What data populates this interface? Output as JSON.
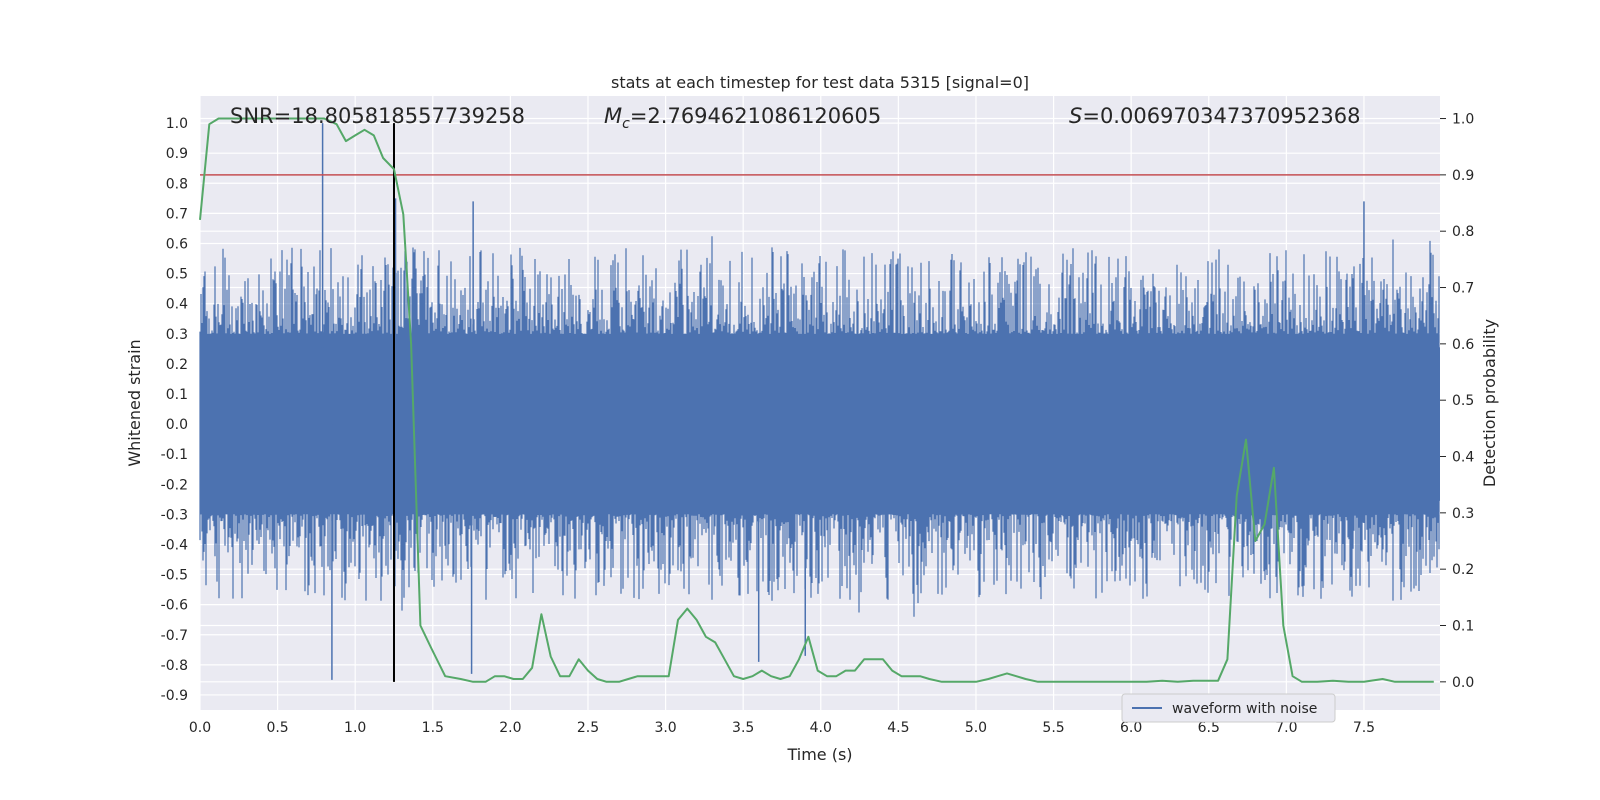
{
  "chart_data": {
    "type": "line",
    "title": "stats at each timestep for test data 5315 [signal=0]",
    "xlabel": "Time (s)",
    "ylabel": "Whitened strain",
    "y2label": "Detection probability",
    "xlim": [
      0,
      7.99
    ],
    "ylim": [
      -0.95,
      1.09
    ],
    "y2lim": [
      -0.05,
      1.04
    ],
    "xticks": [
      "0.0",
      "0.5",
      "1.0",
      "1.5",
      "2.0",
      "2.5",
      "3.0",
      "3.5",
      "4.0",
      "4.5",
      "5.0",
      "5.5",
      "6.0",
      "6.5",
      "7.0",
      "7.5"
    ],
    "yticks": [
      "1.0",
      "0.9",
      "0.8",
      "0.7",
      "0.6",
      "0.5",
      "0.4",
      "0.3",
      "0.2",
      "0.1",
      "0.0",
      "-0.1",
      "-0.2",
      "-0.3",
      "-0.4",
      "-0.5",
      "-0.6",
      "-0.7",
      "-0.8",
      "-0.9"
    ],
    "y2ticks": [
      "1.0",
      "0.9",
      "0.8",
      "0.7",
      "0.6",
      "0.5",
      "0.4",
      "0.3",
      "0.2",
      "0.1",
      "0.0"
    ],
    "grid": true,
    "legend": {
      "position": "lower-right",
      "entries": [
        "waveform with noise"
      ]
    },
    "annotations": {
      "snr": "SNR=18.805818557739258",
      "mc_symbol": "M",
      "mc_sub": "c",
      "mc_value": "=2.7694621086120605",
      "s_symbol": "S",
      "s_value": "=0.006970347370952368"
    },
    "threshold": {
      "value": 0.9,
      "axis": "y2",
      "color": "#c44e52"
    },
    "vline": {
      "x": 1.25,
      "color": "#000000"
    },
    "waveform": {
      "name": "waveform with noise",
      "color": "#4c72b0",
      "core_amplitude": 0.3,
      "typical_peak": 0.55,
      "spikes": [
        [
          0.79,
          1.0
        ],
        [
          0.85,
          -0.85
        ],
        [
          1.26,
          0.75
        ],
        [
          1.76,
          0.74
        ],
        [
          1.75,
          -0.83
        ],
        [
          7.5,
          0.74
        ],
        [
          3.6,
          -0.79
        ],
        [
          3.9,
          -0.77
        ]
      ]
    },
    "probability": {
      "color": "#55a868",
      "x": [
        0.0,
        0.06,
        0.12,
        0.2,
        0.3,
        0.4,
        0.5,
        0.6,
        0.7,
        0.8,
        0.88,
        0.94,
        1.0,
        1.06,
        1.12,
        1.18,
        1.25,
        1.31,
        1.36,
        1.42,
        1.49,
        1.58,
        1.68,
        1.76,
        1.84,
        1.9,
        1.96,
        2.02,
        2.08,
        2.14,
        2.2,
        2.26,
        2.32,
        2.38,
        2.44,
        2.5,
        2.56,
        2.62,
        2.7,
        2.76,
        2.82,
        2.9,
        2.96,
        3.02,
        3.08,
        3.14,
        3.2,
        3.26,
        3.32,
        3.38,
        3.44,
        3.5,
        3.56,
        3.62,
        3.68,
        3.74,
        3.8,
        3.86,
        3.92,
        3.98,
        4.04,
        4.1,
        4.16,
        4.22,
        4.28,
        4.34,
        4.4,
        4.46,
        4.52,
        4.58,
        4.64,
        4.7,
        4.78,
        4.9,
        5.0,
        5.08,
        5.14,
        5.2,
        5.26,
        5.32,
        5.4,
        5.5,
        5.6,
        5.8,
        6.0,
        6.1,
        6.2,
        6.3,
        6.4,
        6.5,
        6.56,
        6.62,
        6.68,
        6.74,
        6.8,
        6.86,
        6.92,
        6.98,
        7.04,
        7.1,
        7.2,
        7.3,
        7.4,
        7.5,
        7.62,
        7.7,
        7.8,
        7.95
      ],
      "y": [
        0.82,
        0.99,
        1.0,
        1.0,
        1.0,
        1.0,
        1.0,
        1.0,
        1.0,
        1.0,
        0.99,
        0.96,
        0.97,
        0.98,
        0.97,
        0.93,
        0.91,
        0.83,
        0.6,
        0.1,
        0.06,
        0.01,
        0.005,
        0.0,
        0.0,
        0.01,
        0.01,
        0.005,
        0.005,
        0.025,
        0.12,
        0.045,
        0.01,
        0.01,
        0.04,
        0.02,
        0.005,
        0.0,
        0.0,
        0.005,
        0.01,
        0.01,
        0.01,
        0.01,
        0.11,
        0.13,
        0.11,
        0.08,
        0.07,
        0.04,
        0.01,
        0.005,
        0.01,
        0.02,
        0.01,
        0.005,
        0.01,
        0.04,
        0.08,
        0.02,
        0.01,
        0.01,
        0.02,
        0.02,
        0.04,
        0.04,
        0.04,
        0.02,
        0.01,
        0.01,
        0.01,
        0.005,
        0.0,
        0.0,
        0.0,
        0.005,
        0.01,
        0.015,
        0.01,
        0.005,
        0.0,
        0.0,
        0.0,
        0.0,
        0.0,
        0.0,
        0.002,
        0.0,
        0.002,
        0.002,
        0.002,
        0.04,
        0.33,
        0.43,
        0.25,
        0.28,
        0.38,
        0.1,
        0.01,
        0.0,
        0.0,
        0.002,
        0.0,
        0.0,
        0.005,
        0.0,
        0.0,
        0.0
      ]
    }
  }
}
